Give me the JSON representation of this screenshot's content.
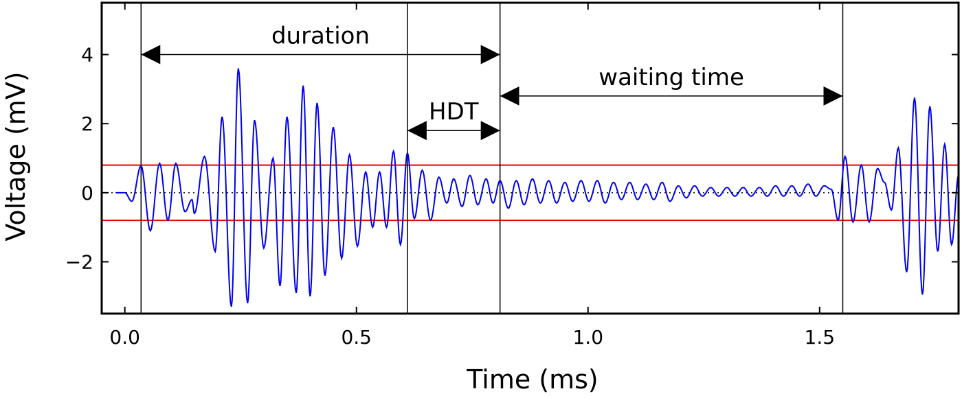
{
  "chart_data": {
    "type": "line",
    "title": "",
    "xlabel": "Time (ms)",
    "ylabel": "Voltage (mV)",
    "xlim": [
      -0.05,
      1.8
    ],
    "ylim": [
      -3.5,
      5.5
    ],
    "x_ticks": [
      {
        "value": 0.0,
        "label": "0.0"
      },
      {
        "value": 0.5,
        "label": "0.5"
      },
      {
        "value": 1.0,
        "label": "1.0"
      },
      {
        "value": 1.5,
        "label": "1.5"
      }
    ],
    "y_ticks": [
      {
        "value": -2,
        "label": "−2"
      },
      {
        "value": 0,
        "label": "0"
      },
      {
        "value": 2,
        "label": "2"
      },
      {
        "value": 4,
        "label": "4"
      }
    ],
    "colors": {
      "signal": "#0000ee",
      "threshold": "#ee0000",
      "marker": "#000000",
      "baseline": "#000000"
    },
    "thresholds": [
      0.8,
      -0.8
    ],
    "baseline": 0,
    "event_markers": [
      0.035,
      0.61,
      0.81,
      1.55
    ],
    "annotations": [
      {
        "label": "duration",
        "x_start": 0.035,
        "x_end": 0.81,
        "y": 4.0
      },
      {
        "label": "HDT",
        "x_start": 0.61,
        "x_end": 0.81,
        "y": 1.8
      },
      {
        "label": "waiting time",
        "x_start": 0.81,
        "x_end": 1.55,
        "y": 2.8
      }
    ],
    "signal_peaks": [
      [
        -0.02,
        0.0
      ],
      [
        0.0,
        0.0
      ],
      [
        0.015,
        -0.25
      ],
      [
        0.035,
        0.78
      ],
      [
        0.055,
        -1.1
      ],
      [
        0.075,
        0.85
      ],
      [
        0.093,
        -0.8
      ],
      [
        0.11,
        0.85
      ],
      [
        0.13,
        -0.55
      ],
      [
        0.145,
        -0.2
      ],
      [
        0.15,
        -0.6
      ],
      [
        0.172,
        1.05
      ],
      [
        0.195,
        -1.7
      ],
      [
        0.21,
        2.2
      ],
      [
        0.23,
        -3.3
      ],
      [
        0.245,
        3.6
      ],
      [
        0.265,
        -3.2
      ],
      [
        0.28,
        2.1
      ],
      [
        0.3,
        -1.6
      ],
      [
        0.32,
        1.0
      ],
      [
        0.335,
        -2.7
      ],
      [
        0.35,
        2.2
      ],
      [
        0.37,
        -2.9
      ],
      [
        0.385,
        3.1
      ],
      [
        0.4,
        -3.0
      ],
      [
        0.415,
        2.6
      ],
      [
        0.432,
        -2.4
      ],
      [
        0.45,
        1.9
      ],
      [
        0.468,
        -1.9
      ],
      [
        0.485,
        1.1
      ],
      [
        0.502,
        -1.55
      ],
      [
        0.52,
        0.6
      ],
      [
        0.535,
        -1.0
      ],
      [
        0.55,
        0.6
      ],
      [
        0.565,
        -1.0
      ],
      [
        0.58,
        1.2
      ],
      [
        0.595,
        -1.5
      ],
      [
        0.61,
        1.15
      ],
      [
        0.625,
        -0.75
      ],
      [
        0.642,
        0.65
      ],
      [
        0.66,
        -0.8
      ],
      [
        0.678,
        0.45
      ],
      [
        0.695,
        -0.3
      ],
      [
        0.71,
        0.4
      ],
      [
        0.728,
        -0.4
      ],
      [
        0.745,
        0.5
      ],
      [
        0.762,
        -0.35
      ],
      [
        0.78,
        0.4
      ],
      [
        0.795,
        -0.3
      ],
      [
        0.81,
        0.35
      ],
      [
        0.828,
        -0.45
      ],
      [
        0.845,
        0.35
      ],
      [
        0.862,
        -0.35
      ],
      [
        0.88,
        0.4
      ],
      [
        0.897,
        -0.3
      ],
      [
        0.915,
        0.35
      ],
      [
        0.932,
        -0.3
      ],
      [
        0.95,
        0.3
      ],
      [
        0.967,
        -0.25
      ],
      [
        0.985,
        0.35
      ],
      [
        1.002,
        -0.25
      ],
      [
        1.02,
        0.35
      ],
      [
        1.037,
        -0.3
      ],
      [
        1.055,
        0.3
      ],
      [
        1.072,
        -0.2
      ],
      [
        1.09,
        0.3
      ],
      [
        1.107,
        -0.2
      ],
      [
        1.125,
        0.25
      ],
      [
        1.142,
        -0.2
      ],
      [
        1.16,
        0.3
      ],
      [
        1.177,
        -0.25
      ],
      [
        1.195,
        0.2
      ],
      [
        1.212,
        -0.15
      ],
      [
        1.23,
        0.2
      ],
      [
        1.247,
        -0.1
      ],
      [
        1.265,
        0.15
      ],
      [
        1.282,
        -0.1
      ],
      [
        1.3,
        0.15
      ],
      [
        1.317,
        -0.1
      ],
      [
        1.335,
        0.15
      ],
      [
        1.352,
        -0.1
      ],
      [
        1.37,
        0.15
      ],
      [
        1.387,
        -0.1
      ],
      [
        1.405,
        0.2
      ],
      [
        1.422,
        -0.1
      ],
      [
        1.44,
        0.2
      ],
      [
        1.457,
        -0.1
      ],
      [
        1.475,
        0.25
      ],
      [
        1.492,
        -0.1
      ],
      [
        1.51,
        0.2
      ],
      [
        1.525,
        0.1
      ],
      [
        1.54,
        -0.8
      ],
      [
        1.555,
        1.05
      ],
      [
        1.572,
        -0.85
      ],
      [
        1.59,
        0.8
      ],
      [
        1.607,
        -0.85
      ],
      [
        1.625,
        0.7
      ],
      [
        1.64,
        0.3
      ],
      [
        1.655,
        -0.5
      ],
      [
        1.67,
        1.3
      ],
      [
        1.688,
        -2.3
      ],
      [
        1.705,
        2.75
      ],
      [
        1.722,
        -2.95
      ],
      [
        1.738,
        2.5
      ],
      [
        1.755,
        -1.7
      ],
      [
        1.77,
        1.4
      ],
      [
        1.785,
        -1.5
      ],
      [
        1.8,
        0.5
      ]
    ]
  }
}
